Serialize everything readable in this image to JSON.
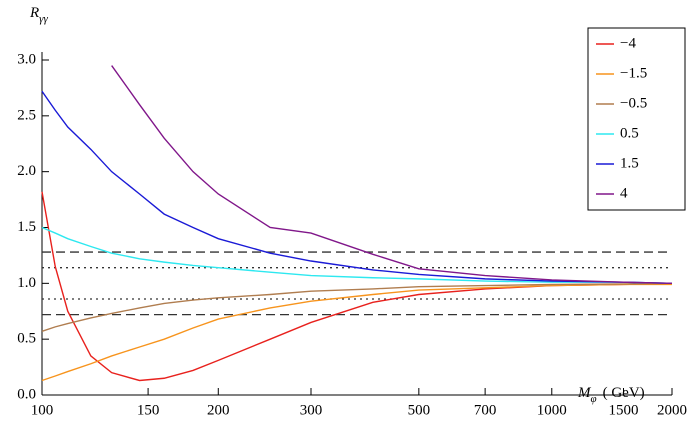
{
  "chart_data": {
    "type": "line",
    "xlabel": {
      "main": "M",
      "sub": "φ",
      "unit": "( GeV)"
    },
    "ylabel": {
      "main": "R",
      "sub": "γγ"
    },
    "x": [
      100,
      105,
      110,
      120,
      130,
      145,
      160,
      180,
      200,
      250,
      300,
      400,
      500,
      700,
      1000,
      1500,
      2000
    ],
    "xscale": "loglog",
    "xlim": [
      100,
      2000
    ],
    "xticks": [
      100,
      150,
      200,
      300,
      500,
      700,
      1000,
      1500,
      2000
    ],
    "ylim": [
      0,
      3
    ],
    "yticks": [
      {
        "value": 0,
        "label": "0.0"
      },
      0.5,
      {
        "value": 1,
        "label": "1.0"
      },
      1.5,
      {
        "value": 2,
        "label": "2.0"
      },
      2.5,
      {
        "value": 3,
        "label": "3.0"
      }
    ],
    "hlines": [
      {
        "value": 1.28,
        "style": "dashed"
      },
      {
        "value": 0.72,
        "style": "dashed"
      },
      {
        "value": 1.14,
        "style": "dotted"
      },
      {
        "value": 0.86,
        "style": "dotted"
      }
    ],
    "legend": "outside-top-right",
    "series": [
      {
        "name": "−4",
        "color": "#e8211d",
        "values": [
          1.82,
          1.15,
          0.75,
          0.35,
          0.2,
          0.13,
          0.15,
          0.22,
          0.31,
          0.5,
          0.65,
          0.83,
          0.9,
          0.95,
          0.98,
          0.99,
          1.0
        ]
      },
      {
        "name": "−1.5",
        "color": "#f7941d",
        "values": [
          0.13,
          0.17,
          0.21,
          0.28,
          0.35,
          0.43,
          0.5,
          0.6,
          0.68,
          0.78,
          0.84,
          0.9,
          0.94,
          0.96,
          0.98,
          0.99,
          0.99
        ]
      },
      {
        "name": "−0.5",
        "color": "#b07d4f",
        "values": [
          0.57,
          0.61,
          0.64,
          0.69,
          0.73,
          0.78,
          0.82,
          0.85,
          0.87,
          0.9,
          0.93,
          0.95,
          0.97,
          0.98,
          0.99,
          0.995,
          1.0
        ]
      },
      {
        "name": "0.5",
        "color": "#2ee8f0",
        "values": [
          1.5,
          1.45,
          1.4,
          1.33,
          1.27,
          1.22,
          1.19,
          1.16,
          1.14,
          1.1,
          1.07,
          1.05,
          1.04,
          1.02,
          1.01,
          1.01,
          1.0
        ]
      },
      {
        "name": "1.5",
        "color": "#1a1ad6",
        "values": [
          2.72,
          2.55,
          2.4,
          2.2,
          2.0,
          1.8,
          1.62,
          1.5,
          1.4,
          1.27,
          1.2,
          1.12,
          1.08,
          1.04,
          1.02,
          1.01,
          1.0
        ]
      },
      {
        "name": "4",
        "color": "#80178a",
        "values": [
          null,
          null,
          null,
          null,
          2.95,
          2.6,
          2.3,
          2.0,
          1.8,
          1.5,
          1.45,
          1.26,
          1.13,
          1.07,
          1.03,
          1.01,
          1.0
        ]
      }
    ]
  }
}
